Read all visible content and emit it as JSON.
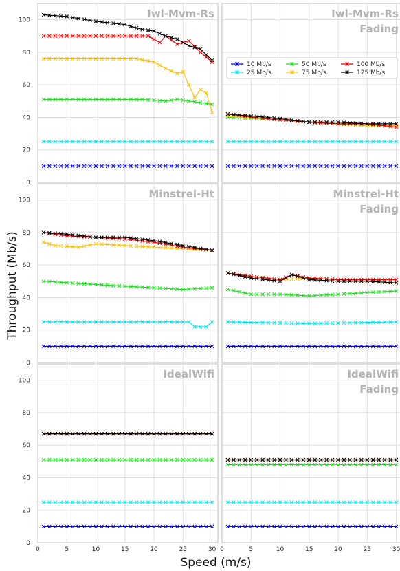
{
  "chart_data": {
    "type": "line",
    "xlabel": "Speed (m/s)",
    "ylabel": "Throughput (Mb/s)",
    "xlim": [
      0,
      31
    ],
    "ylim": [
      0,
      110
    ],
    "xticks": [
      0,
      5,
      10,
      15,
      20,
      25,
      30
    ],
    "yticks": [
      0,
      20,
      40,
      60,
      80,
      100
    ],
    "grid": true,
    "legend_location": "top-right panel, upper area",
    "legend": [
      {
        "label": "10 Mb/s",
        "color": "#0000ee"
      },
      {
        "label": "25 Mb/s",
        "color": "#00e5ee"
      },
      {
        "label": "50 Mb/s",
        "color": "#22dd22"
      },
      {
        "label": "75 Mb/s",
        "color": "#ffc000"
      },
      {
        "label": "100 Mb/s",
        "color": "#ee0000"
      },
      {
        "label": "125 Mb/s",
        "color": "#000000"
      }
    ],
    "panels": [
      {
        "title": [
          "Iwl-Mvm-Rs"
        ],
        "series": [
          {
            "name": "10 Mb/s",
            "control": [
              [
                1,
                10
              ],
              [
                30,
                10
              ]
            ]
          },
          {
            "name": "25 Mb/s",
            "control": [
              [
                1,
                25
              ],
              [
                30,
                25
              ]
            ]
          },
          {
            "name": "50 Mb/s",
            "control": [
              [
                1,
                51
              ],
              [
                18,
                51
              ],
              [
                22,
                50
              ],
              [
                24,
                51
              ],
              [
                30,
                48
              ]
            ]
          },
          {
            "name": "75 Mb/s",
            "control": [
              [
                1,
                76
              ],
              [
                17,
                76
              ],
              [
                20,
                74
              ],
              [
                22,
                70
              ],
              [
                24,
                67
              ],
              [
                25,
                68
              ],
              [
                27,
                52
              ],
              [
                28,
                57
              ],
              [
                29,
                55
              ],
              [
                30,
                43
              ]
            ]
          },
          {
            "name": "100 Mb/s",
            "control": [
              [
                1,
                90
              ],
              [
                19,
                90
              ],
              [
                21,
                86
              ],
              [
                22,
                90
              ],
              [
                24,
                85
              ],
              [
                26,
                87
              ],
              [
                28,
                80
              ],
              [
                29,
                77
              ],
              [
                30,
                74
              ]
            ]
          },
          {
            "name": "125 Mb/s",
            "control": [
              [
                1,
                103
              ],
              [
                5,
                102
              ],
              [
                10,
                99
              ],
              [
                15,
                97
              ],
              [
                18,
                94
              ],
              [
                20,
                93
              ],
              [
                22,
                90
              ],
              [
                24,
                88
              ],
              [
                26,
                84
              ],
              [
                28,
                82
              ],
              [
                30,
                75
              ]
            ]
          }
        ]
      },
      {
        "title": [
          "Iwl-Mvm-Rs",
          "Fading"
        ],
        "series": [
          {
            "name": "10 Mb/s",
            "control": [
              [
                1,
                10
              ],
              [
                30,
                10
              ]
            ]
          },
          {
            "name": "25 Mb/s",
            "control": [
              [
                1,
                25
              ],
              [
                30,
                25
              ]
            ]
          },
          {
            "name": "50 Mb/s",
            "control": [
              [
                1,
                40
              ],
              [
                8,
                39
              ],
              [
                15,
                37
              ],
              [
                20,
                36
              ],
              [
                25,
                35
              ],
              [
                30,
                35
              ]
            ]
          },
          {
            "name": "75 Mb/s",
            "control": [
              [
                1,
                41
              ],
              [
                8,
                39
              ],
              [
                15,
                37
              ],
              [
                20,
                36
              ],
              [
                25,
                35
              ],
              [
                30,
                35
              ]
            ]
          },
          {
            "name": "100 Mb/s",
            "control": [
              [
                1,
                42
              ],
              [
                8,
                39
              ],
              [
                15,
                37
              ],
              [
                20,
                36
              ],
              [
                25,
                36
              ],
              [
                30,
                34
              ]
            ]
          },
          {
            "name": "125 Mb/s",
            "control": [
              [
                1,
                42
              ],
              [
                8,
                40
              ],
              [
                15,
                37
              ],
              [
                20,
                37
              ],
              [
                25,
                36
              ],
              [
                30,
                36
              ]
            ]
          }
        ]
      },
      {
        "title": [
          "Minstrel-Ht"
        ],
        "series": [
          {
            "name": "10 Mb/s",
            "control": [
              [
                1,
                10
              ],
              [
                30,
                10
              ]
            ]
          },
          {
            "name": "25 Mb/s",
            "control": [
              [
                1,
                25
              ],
              [
                26,
                25
              ],
              [
                27,
                22
              ],
              [
                28,
                22
              ],
              [
                29,
                22
              ],
              [
                30,
                25
              ]
            ]
          },
          {
            "name": "50 Mb/s",
            "control": [
              [
                1,
                50
              ],
              [
                10,
                48
              ],
              [
                20,
                46
              ],
              [
                25,
                45
              ],
              [
                30,
                46
              ]
            ]
          },
          {
            "name": "75 Mb/s",
            "control": [
              [
                1,
                74
              ],
              [
                3,
                72
              ],
              [
                7,
                71
              ],
              [
                10,
                73
              ],
              [
                15,
                72
              ],
              [
                20,
                71
              ],
              [
                25,
                70
              ],
              [
                30,
                69
              ]
            ]
          },
          {
            "name": "100 Mb/s",
            "control": [
              [
                1,
                80
              ],
              [
                5,
                78
              ],
              [
                10,
                77
              ],
              [
                15,
                76
              ],
              [
                20,
                74
              ],
              [
                25,
                71
              ],
              [
                30,
                69
              ]
            ]
          },
          {
            "name": "125 Mb/s",
            "control": [
              [
                1,
                80
              ],
              [
                5,
                79
              ],
              [
                10,
                77
              ],
              [
                15,
                77
              ],
              [
                20,
                75
              ],
              [
                25,
                72
              ],
              [
                30,
                69
              ]
            ]
          }
        ]
      },
      {
        "title": [
          "Minstrel-Ht",
          "Fading"
        ],
        "series": [
          {
            "name": "10 Mb/s",
            "control": [
              [
                1,
                10
              ],
              [
                30,
                10
              ]
            ]
          },
          {
            "name": "25 Mb/s",
            "control": [
              [
                1,
                25
              ],
              [
                15,
                24
              ],
              [
                30,
                25
              ]
            ]
          },
          {
            "name": "50 Mb/s",
            "control": [
              [
                1,
                45
              ],
              [
                5,
                42
              ],
              [
                10,
                42
              ],
              [
                15,
                41
              ],
              [
                20,
                42
              ],
              [
                25,
                43
              ],
              [
                30,
                44
              ]
            ]
          },
          {
            "name": "75 Mb/s",
            "control": [
              [
                1,
                55
              ],
              [
                5,
                53
              ],
              [
                10,
                51
              ],
              [
                15,
                52
              ],
              [
                20,
                51
              ],
              [
                25,
                50
              ],
              [
                30,
                49
              ]
            ]
          },
          {
            "name": "100 Mb/s",
            "control": [
              [
                1,
                55
              ],
              [
                5,
                53
              ],
              [
                10,
                51
              ],
              [
                12,
                54
              ],
              [
                15,
                52
              ],
              [
                20,
                51
              ],
              [
                25,
                51
              ],
              [
                30,
                51
              ]
            ]
          },
          {
            "name": "125 Mb/s",
            "control": [
              [
                1,
                55
              ],
              [
                5,
                52
              ],
              [
                10,
                50
              ],
              [
                12,
                54
              ],
              [
                15,
                51
              ],
              [
                20,
                50
              ],
              [
                25,
                50
              ],
              [
                30,
                49
              ]
            ]
          }
        ]
      },
      {
        "title": [
          "IdealWifi"
        ],
        "series": [
          {
            "name": "10 Mb/s",
            "control": [
              [
                1,
                10
              ],
              [
                30,
                10
              ]
            ]
          },
          {
            "name": "25 Mb/s",
            "control": [
              [
                1,
                25
              ],
              [
                30,
                25
              ]
            ]
          },
          {
            "name": "50 Mb/s",
            "control": [
              [
                1,
                51
              ],
              [
                30,
                51
              ]
            ]
          },
          {
            "name": "75 Mb/s",
            "control": [
              [
                1,
                67
              ],
              [
                30,
                67
              ]
            ]
          },
          {
            "name": "100 Mb/s",
            "control": [
              [
                1,
                67
              ],
              [
                30,
                67
              ]
            ]
          },
          {
            "name": "125 Mb/s",
            "control": [
              [
                1,
                67
              ],
              [
                30,
                67
              ]
            ]
          }
        ]
      },
      {
        "title": [
          "IdealWifi",
          "Fading"
        ],
        "series": [
          {
            "name": "10 Mb/s",
            "control": [
              [
                1,
                10
              ],
              [
                30,
                10
              ]
            ]
          },
          {
            "name": "25 Mb/s",
            "control": [
              [
                1,
                25
              ],
              [
                30,
                25
              ]
            ]
          },
          {
            "name": "50 Mb/s",
            "control": [
              [
                1,
                48
              ],
              [
                30,
                48
              ]
            ]
          },
          {
            "name": "75 Mb/s",
            "control": [
              [
                1,
                51
              ],
              [
                30,
                51
              ]
            ]
          },
          {
            "name": "100 Mb/s",
            "control": [
              [
                1,
                51
              ],
              [
                30,
                51
              ]
            ]
          },
          {
            "name": "125 Mb/s",
            "control": [
              [
                1,
                51
              ],
              [
                30,
                51
              ]
            ]
          }
        ]
      }
    ]
  }
}
